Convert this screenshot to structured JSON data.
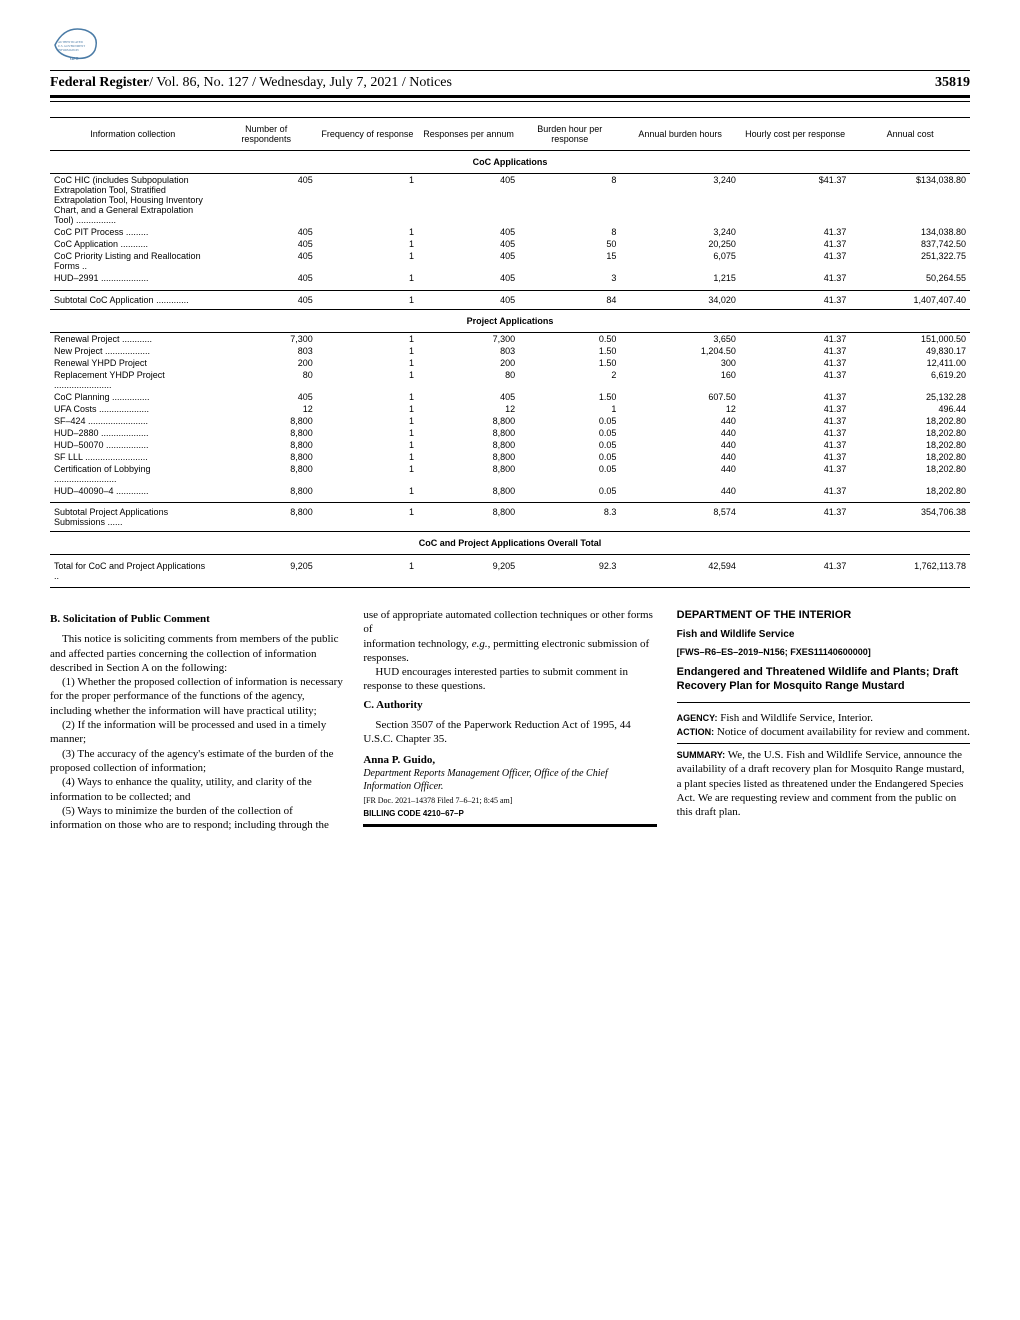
{
  "header": {
    "publication": "Federal Register",
    "details": "/ Vol. 86, No. 127 / Wednesday, July 7, 2021 / Notices",
    "page": "35819"
  },
  "table": {
    "columns": [
      "Information collection",
      "Number of respondents",
      "Frequency of response",
      "Responses per annum",
      "Burden hour per response",
      "Annual burden hours",
      "Hourly cost per response",
      "Annual cost"
    ],
    "sections": [
      {
        "title": "CoC Applications",
        "rows": [
          {
            "label": "CoC HIC (includes Subpopulation Extrapolation Tool, Stratified Extrapolation Tool, Housing Inventory Chart, and a General Extrapolation Tool) ................",
            "multiline": true,
            "values": [
              "405",
              "1",
              "405",
              "8",
              "3,240",
              "$41.37",
              "$134,038.80"
            ]
          },
          {
            "label": "CoC PIT Process .........",
            "values": [
              "405",
              "1",
              "405",
              "8",
              "3,240",
              "41.37",
              "134,038.80"
            ]
          },
          {
            "label": "CoC Application ...........",
            "values": [
              "405",
              "1",
              "405",
              "50",
              "20,250",
              "41.37",
              "837,742.50"
            ]
          },
          {
            "label": "CoC Priority Listing and Reallocation Forms ..",
            "multiline": true,
            "values": [
              "405",
              "1",
              "405",
              "15",
              "6,075",
              "41.37",
              "251,322.75"
            ]
          },
          {
            "label": "HUD–2991 ...................",
            "values": [
              "405",
              "1",
              "405",
              "3",
              "1,215",
              "41.37",
              "50,264.55"
            ]
          }
        ],
        "subtotal": {
          "label": "Subtotal CoC Application .............",
          "values": [
            "405",
            "1",
            "405",
            "84",
            "34,020",
            "41.37",
            "1,407,407.40"
          ]
        }
      },
      {
        "title": "Project Applications",
        "rows": [
          {
            "label": "Renewal Project ............",
            "values": [
              "7,300",
              "1",
              "7,300",
              "0.50",
              "3,650",
              "41.37",
              "151,000.50"
            ]
          },
          {
            "label": "New Project ..................",
            "values": [
              "803",
              "1",
              "803",
              "1.50",
              "1,204.50",
              "41.37",
              "49,830.17"
            ]
          },
          {
            "label": "Renewal YHPD Project",
            "values": [
              "200",
              "1",
              "200",
              "1.50",
              "300",
              "41.37",
              "12,411.00"
            ]
          },
          {
            "label": "Replacement YHDP Project .......................",
            "multiline": true,
            "values": [
              "80",
              "1",
              "80",
              "2",
              "160",
              "41.37",
              "6,619.20"
            ]
          },
          {
            "label": "CoC Planning ...............",
            "values": [
              "405",
              "1",
              "405",
              "1.50",
              "607.50",
              "41.37",
              "25,132.28"
            ]
          },
          {
            "label": "UFA Costs ....................",
            "values": [
              "12",
              "1",
              "12",
              "1",
              "12",
              "41.37",
              "496.44"
            ]
          },
          {
            "label": "SF–424 ........................",
            "values": [
              "8,800",
              "1",
              "8,800",
              "0.05",
              "440",
              "41.37",
              "18,202.80"
            ]
          },
          {
            "label": "HUD–2880 ...................",
            "values": [
              "8,800",
              "1",
              "8,800",
              "0.05",
              "440",
              "41.37",
              "18,202.80"
            ]
          },
          {
            "label": "HUD–50070 .................",
            "values": [
              "8,800",
              "1",
              "8,800",
              "0.05",
              "440",
              "41.37",
              "18,202.80"
            ]
          },
          {
            "label": "SF LLL .........................",
            "values": [
              "8,800",
              "1",
              "8,800",
              "0.05",
              "440",
              "41.37",
              "18,202.80"
            ]
          },
          {
            "label": "Certification of Lobbying .........................",
            "multiline": true,
            "values": [
              "8,800",
              "1",
              "8,800",
              "0.05",
              "440",
              "41.37",
              "18,202.80"
            ]
          },
          {
            "label": "HUD–40090–4 .............",
            "values": [
              "8,800",
              "1",
              "8,800",
              "0.05",
              "440",
              "41.37",
              "18,202.80"
            ]
          }
        ],
        "subtotal": {
          "label": "Subtotal Project Applications Submissions ......",
          "values": [
            "8,800",
            "1",
            "8,800",
            "8.3",
            "8,574",
            "41.37",
            "354,706.38"
          ]
        }
      }
    ],
    "overall": {
      "title": "CoC and Project Applications Overall Total",
      "row": {
        "label": "Total for CoC and Project Applications ..",
        "values": [
          "9,205",
          "1",
          "9,205",
          "92.3",
          "42,594",
          "41.37",
          "1,762,113.78"
        ]
      }
    }
  },
  "body": {
    "col1": {
      "heading": "B. Solicitation of Public Comment",
      "p1": "This notice is soliciting comments from members of the public and affected parties concerning the collection of information described in Section A on the following:",
      "p2": "(1) Whether the proposed collection of information is necessary for the proper performance of the functions of the agency, including whether the information will have practical utility;",
      "p3": "(2) If the information will be processed and used in a timely manner;",
      "p4": "(3) The accuracy of the agency's estimate of the burden of the proposed collection of information;",
      "p5": "(4) Ways to enhance the quality, utility, and clarity of the information to be collected; and",
      "p6": "(5) Ways to minimize the burden of the collection of information on those who are to respond; including through the use of appropriate automated collection techniques or other forms of"
    },
    "col2": {
      "p1a": "information technology, ",
      "p1b": "e.g.,",
      "p1c": " permitting electronic submission of responses.",
      "p2": "HUD encourages interested parties to submit comment in response to these questions.",
      "heading": "C. Authority",
      "p3": "Section 3507 of the Paperwork Reduction Act of 1995, 44 U.S.C. Chapter 35.",
      "signature": "Anna P. Guido,",
      "sigTitle": "Department Reports Management Officer, Office of the Chief Information Officer.",
      "filing": "[FR Doc. 2021–14378 Filed 7–6–21; 8:45 am]",
      "billing": "BILLING CODE 4210–67–P"
    },
    "col3": {
      "dept": "DEPARTMENT OF THE INTERIOR",
      "agency": "Fish and Wildlife Service",
      "docket": "[FWS–R6–ES–2019–N156; FXES11140600000]",
      "title": "Endangered and Threatened Wildlife and Plants; Draft Recovery Plan for Mosquito Range Mustard",
      "agencyLabel": "AGENCY:",
      "agencyText": " Fish and Wildlife Service, Interior.",
      "actionLabel": "ACTION:",
      "actionText": " Notice of document availability for review and comment.",
      "summaryLabel": "SUMMARY:",
      "summaryText": " We, the U.S. Fish and Wildlife Service, announce the availability of a draft recovery plan for Mosquito Range mustard, a plant species listed as threatened under the Endangered Species Act. We are requesting review and comment from the public on this draft plan."
    }
  }
}
